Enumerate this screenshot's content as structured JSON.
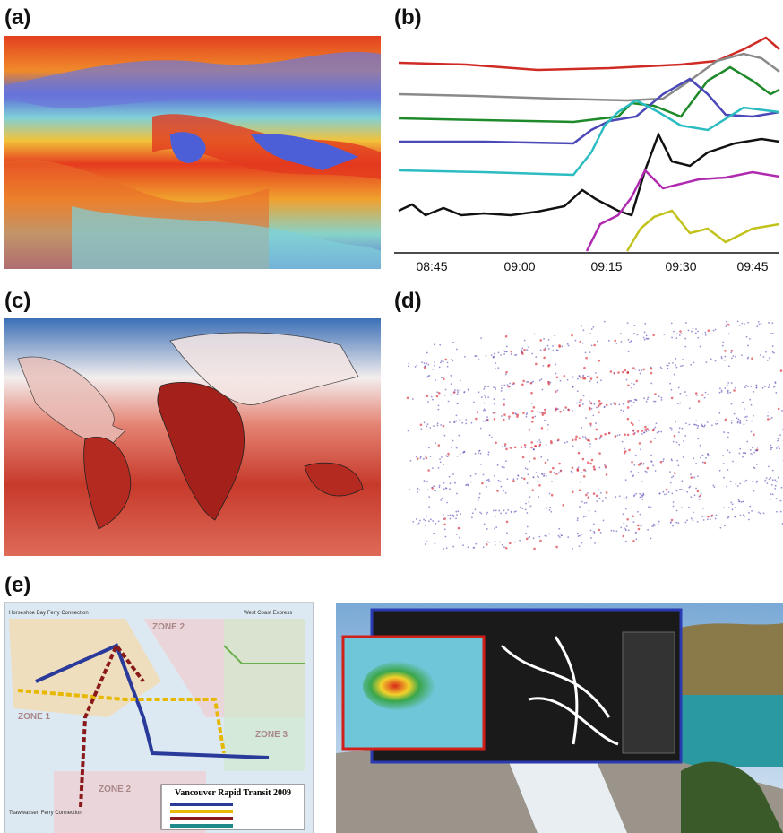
{
  "labels": {
    "a": "(a)",
    "b": "(b)",
    "c": "(c)",
    "d": "(d)",
    "e": "(e)"
  },
  "panel_b": {
    "xticks": [
      "08:45",
      "09:00",
      "09:15",
      "09:30",
      "09:45"
    ]
  },
  "panel_e": {
    "title": "Vancouver Rapid Transit 2009",
    "zones": [
      "ZONE 1",
      "ZONE 2",
      "ZONE 3",
      "ZONE 2"
    ],
    "notes": [
      "Horseshoe Bay Ferry Connection",
      "West Coast Express",
      "Tsawwassen Ferry Connection"
    ]
  }
}
